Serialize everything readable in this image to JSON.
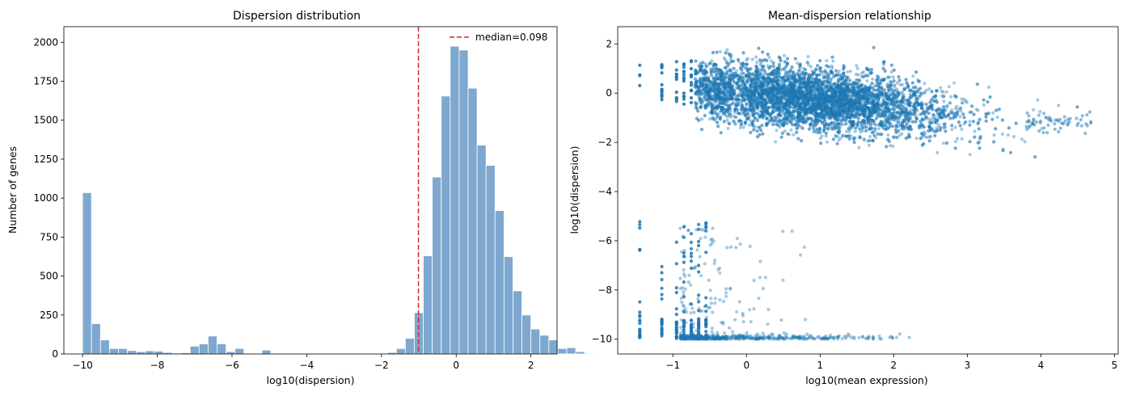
{
  "chart_data": [
    {
      "type": "bar",
      "title": "Dispersion distribution",
      "xlabel": "log10(dispersion)",
      "ylabel": "Number of genes",
      "xlim": [
        -10.5,
        2.7
      ],
      "ylim": [
        0,
        2100
      ],
      "xticks": [
        "−10",
        "−8",
        "−6",
        "−4",
        "−2",
        "0",
        "2"
      ],
      "yticks": [
        "0",
        "250",
        "500",
        "750",
        "1000",
        "1250",
        "1500",
        "1750",
        "2000"
      ],
      "bin_start": -10.0,
      "bin_width": 0.24,
      "values": [
        1035,
        195,
        90,
        35,
        35,
        22,
        15,
        20,
        18,
        10,
        5,
        8,
        50,
        65,
        115,
        65,
        15,
        35,
        0,
        0,
        25,
        0,
        0,
        0,
        0,
        0,
        0,
        0,
        0,
        0,
        0,
        0,
        0,
        0,
        10,
        35,
        100,
        265,
        630,
        1135,
        1655,
        1975,
        1950,
        1705,
        1340,
        1210,
        920,
        625,
        405,
        250,
        160,
        120,
        90,
        35,
        40,
        15,
        5
      ],
      "bar_color": "#7ea8cf",
      "median_line": {
        "x": -1.01,
        "color": "#d62728",
        "label": "median=0.098"
      },
      "legend": "top-right",
      "grid": false
    },
    {
      "type": "scatter",
      "title": "Mean-dispersion relationship",
      "xlabel": "log10(mean expression)",
      "ylabel": "log10(dispersion)",
      "xlim": [
        -1.75,
        5.05
      ],
      "ylim": [
        -10.6,
        2.7
      ],
      "xticks": [
        "−1",
        "0",
        "1",
        "2",
        "3",
        "4",
        "5"
      ],
      "yticks": [
        "−10",
        "−8",
        "−6",
        "−4",
        "−2",
        "0",
        "2"
      ],
      "point_color": "#1f77b4",
      "main_cloud": {
        "x_range": [
          -0.9,
          4.75
        ],
        "center_y_at_x0": 0.0,
        "slope": -0.3,
        "count": 9000
      },
      "low_cluster": {
        "x_range": [
          -1.45,
          2.3
        ],
        "floor_y": -10.0,
        "top_y": -5.0,
        "count": 1000
      },
      "grid": false
    }
  ]
}
